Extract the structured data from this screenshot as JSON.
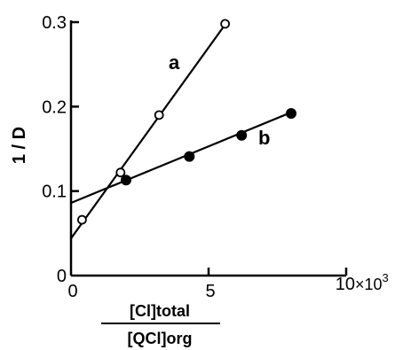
{
  "chart_data": {
    "type": "line",
    "ylabel": "1 / D",
    "xlabel_numerator": "[Cl]total",
    "xlabel_denominator": "[QCl]org",
    "x_multiplier": "×10",
    "x_multiplier_exp": "3",
    "xlim": [
      0,
      10
    ],
    "ylim": [
      0,
      0.3
    ],
    "x_ticks": [
      {
        "value": 0,
        "label": "0"
      },
      {
        "value": 5,
        "label": "5"
      },
      {
        "value": 10,
        "label": "10"
      }
    ],
    "y_ticks": [
      {
        "value": 0,
        "label": "0"
      },
      {
        "value": 0.1,
        "label": "0.1"
      },
      {
        "value": 0.2,
        "label": "0.2"
      },
      {
        "value": 0.3,
        "label": "0.3"
      }
    ],
    "series": [
      {
        "name": "a",
        "marker": "open-circle",
        "fit": {
          "intercept": 0.044,
          "slope": 0.0452,
          "x_range": [
            0,
            5.6
          ]
        },
        "points": [
          [
            0.4,
            0.066
          ],
          [
            1.8,
            0.122
          ],
          [
            3.2,
            0.19
          ],
          [
            5.6,
            0.298
          ]
        ]
      },
      {
        "name": "b",
        "marker": "filled-circle",
        "fit": {
          "intercept": 0.086,
          "slope": 0.0134,
          "x_range": [
            0,
            8.0
          ]
        },
        "points": [
          [
            2.0,
            0.113
          ],
          [
            4.3,
            0.141
          ],
          [
            6.2,
            0.166
          ],
          [
            8.0,
            0.192
          ]
        ]
      }
    ]
  }
}
